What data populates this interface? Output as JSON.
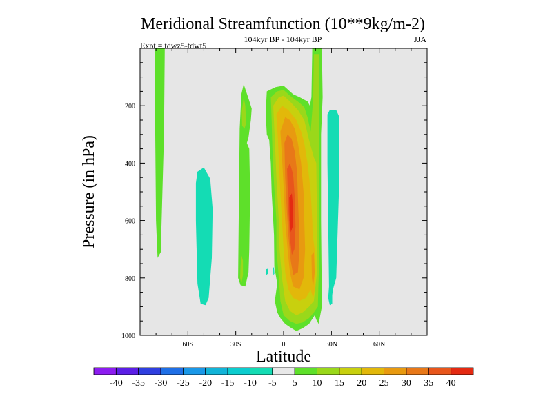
{
  "chart_data": {
    "type": "contour",
    "title": "Meridional Streamfunction (10**9kg/m-2)",
    "subtitle": "104kyr BP - 104kyr BP",
    "left_label": "Expt = tdwz5-tdwt5",
    "season": "JJA",
    "xlabel": "Latitude",
    "ylabel": "Pressure (in hPa)",
    "xlim": [
      -90,
      90
    ],
    "ylim": [
      1000,
      0
    ],
    "xticks": [
      {
        "value": -60,
        "label": "60S"
      },
      {
        "value": -30,
        "label": "30S"
      },
      {
        "value": 0,
        "label": "0"
      },
      {
        "value": 30,
        "label": "30N"
      },
      {
        "value": 60,
        "label": "60N"
      }
    ],
    "yticks": [
      {
        "value": 200,
        "label": "200"
      },
      {
        "value": 400,
        "label": "400"
      },
      {
        "value": 600,
        "label": "600"
      },
      {
        "value": 800,
        "label": "800"
      },
      {
        "value": 1000,
        "label": "1000"
      }
    ],
    "colorbar": {
      "labels": [
        "-40",
        "-35",
        "-30",
        "-25",
        "-20",
        "-15",
        "-10",
        "-5",
        "5",
        "10",
        "15",
        "20",
        "25",
        "30",
        "35",
        "40"
      ],
      "colors": [
        "#8c1cf0",
        "#5b1ee6",
        "#2f3fe0",
        "#1f6fe6",
        "#1a98e8",
        "#12b4d8",
        "#0ccdcf",
        "#14dcb4",
        "#e8e8e8",
        "#5ee02a",
        "#9ad81a",
        "#c8d00e",
        "#e2b80a",
        "#e89a10",
        "#e87818",
        "#e8561c",
        "#e42a12"
      ]
    },
    "features": [
      {
        "name": "positive-cell-30s",
        "color": "#5ee02a",
        "lat_range": [
          -28,
          -20
        ],
        "p_range": [
          120,
          830
        ],
        "sign": "positive"
      },
      {
        "name": "positive-cell-75s",
        "color": "#5ee02a",
        "lat_range": [
          -80,
          -75
        ],
        "p_range": [
          0,
          720
        ],
        "sign": "positive"
      },
      {
        "name": "negative-cell-50s",
        "color": "#14dcb4",
        "lat_range": [
          -55,
          -45
        ],
        "p_range": [
          420,
          890
        ],
        "sign": "negative"
      },
      {
        "name": "negative-cell-30n",
        "color": "#14dcb4",
        "lat_range": [
          27,
          35
        ],
        "p_range": [
          215,
          880
        ],
        "sign": "negative"
      },
      {
        "name": "hadley-cell-core",
        "color": "#e8561c",
        "lat_range": [
          -10,
          25
        ],
        "p_range": [
          110,
          980
        ],
        "sign": "positive",
        "max": 40
      }
    ]
  }
}
